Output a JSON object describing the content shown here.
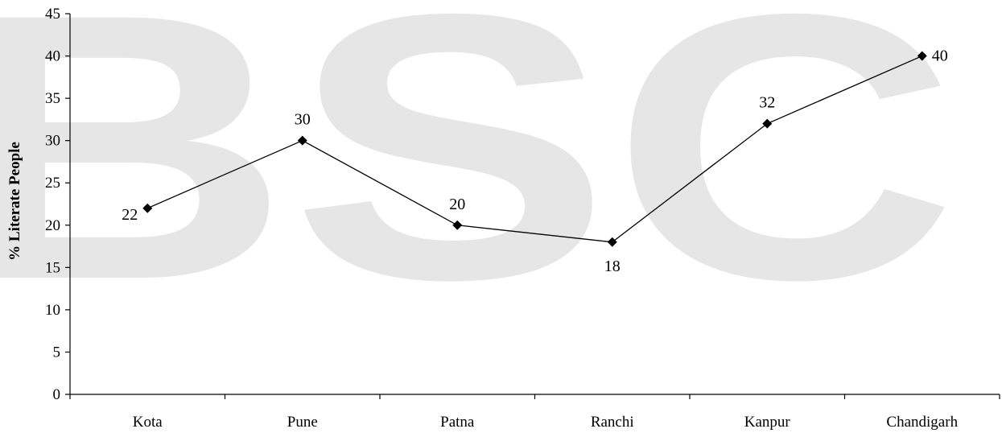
{
  "watermark": {
    "text": "BSC",
    "color": "#e6e6e6"
  },
  "chart_data": {
    "type": "line",
    "title": "",
    "xlabel": "",
    "ylabel": "% Literate People",
    "categories": [
      "Kota",
      "Pune",
      "Patna",
      "Ranchi",
      "Kanpur",
      "Chandigarh"
    ],
    "series": [
      {
        "values": [
          22,
          30,
          20,
          18,
          32,
          40
        ],
        "color": "#000000",
        "marker": "diamond"
      }
    ],
    "data_labels": [
      "22",
      "30",
      "20",
      "18",
      "32",
      "40"
    ],
    "data_label_positions": [
      "left",
      "above",
      "above",
      "below",
      "above",
      "right"
    ],
    "ylim": [
      0,
      45
    ],
    "yticks": [
      "0",
      "5",
      "10",
      "15",
      "20",
      "25",
      "30",
      "35",
      "40",
      "45"
    ],
    "grid": false,
    "legend": false
  }
}
